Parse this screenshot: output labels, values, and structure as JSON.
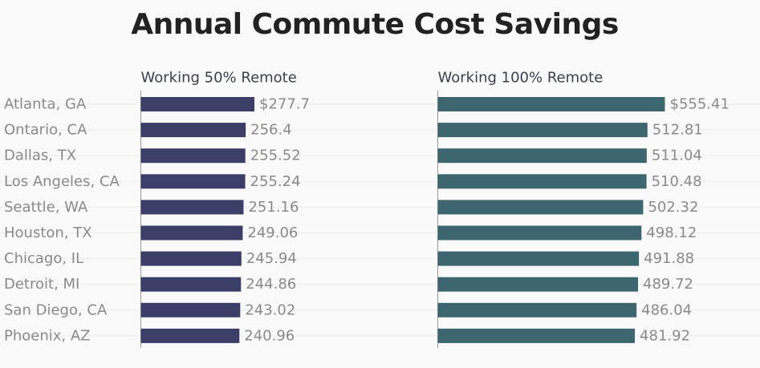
{
  "chart_data": {
    "type": "bar",
    "orientation": "horizontal",
    "title": "Annual Commute Cost Savings",
    "categories": [
      "Atlanta, GA",
      "Ontario, CA",
      "Dallas, TX",
      "Los Angeles, CA",
      "Seattle, WA",
      "Houston, TX",
      "Chicago, IL",
      "Detroit, MI",
      "San Diego, CA",
      "Phoenix, AZ"
    ],
    "series": [
      {
        "name": "Working 50% Remote",
        "color": "#3b3f68",
        "values": [
          277.7,
          256.4,
          255.52,
          255.24,
          251.16,
          249.06,
          245.94,
          244.86,
          243.02,
          240.96
        ],
        "labels": [
          "$277.7",
          "256.4",
          "255.52",
          "255.24",
          "251.16",
          "249.06",
          "245.94",
          "244.86",
          "243.02",
          "240.96"
        ]
      },
      {
        "name": "Working 100% Remote",
        "color": "#3d6670",
        "values": [
          555.41,
          512.81,
          511.04,
          510.48,
          502.32,
          498.12,
          491.88,
          489.72,
          486.04,
          481.92
        ],
        "labels": [
          "$555.41",
          "512.81",
          "511.04",
          "510.48",
          "502.32",
          "498.12",
          "491.88",
          "489.72",
          "486.04",
          "481.92"
        ]
      }
    ],
    "xlim": [
      0,
      600
    ]
  }
}
